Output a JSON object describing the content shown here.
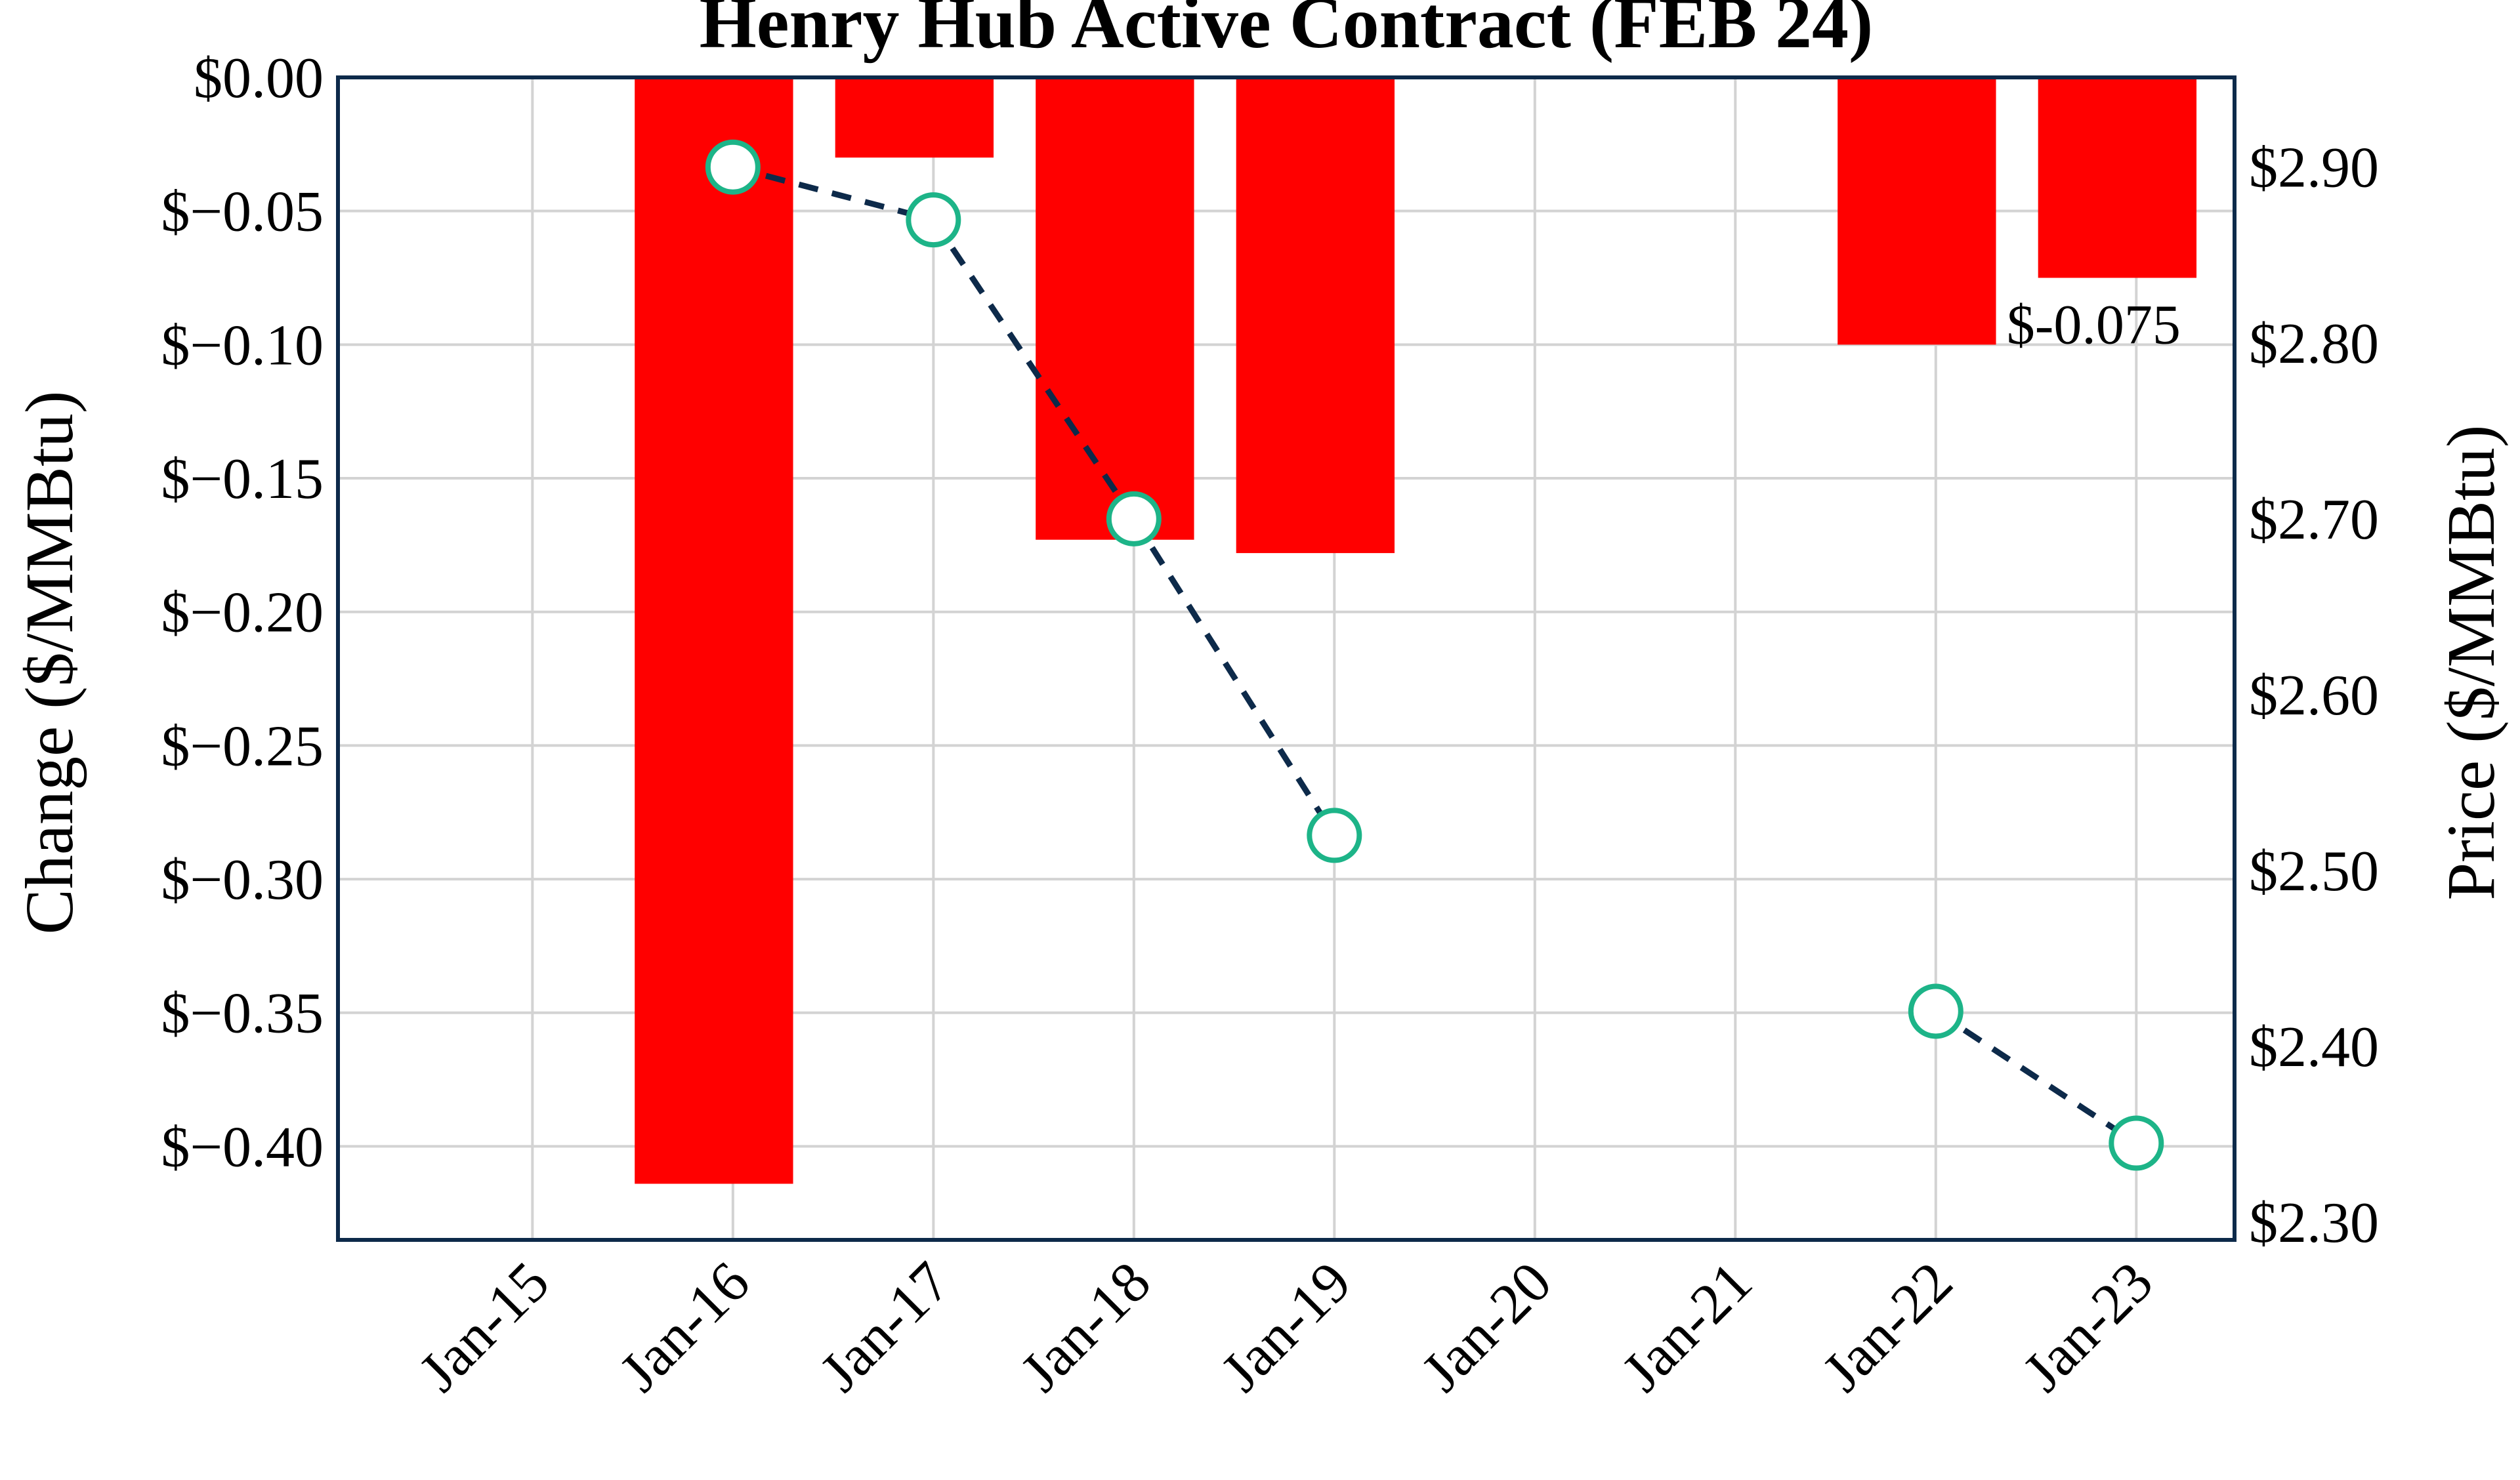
{
  "chart_data": {
    "type": "bar",
    "title": "Henry Hub Active Contract (FEB 24)",
    "xlabel": "",
    "ylabel": "Change ($/MMBtu)",
    "y2label": "Price ($/MMBtu)",
    "categories": [
      "Jan-15",
      "Jan-16",
      "Jan-17",
      "Jan-18",
      "Jan-19",
      "Jan-20",
      "Jan-21",
      "Jan-22",
      "Jan-23"
    ],
    "y_ticks": [
      "$0.00",
      "$−0.05",
      "$−0.10",
      "$−0.15",
      "$−0.20",
      "$−0.25",
      "$−0.30",
      "$−0.35",
      "$−0.40"
    ],
    "y2_ticks": [
      "$2.90",
      "$2.80",
      "$2.70",
      "$2.60",
      "$2.50",
      "$2.40",
      "$2.30"
    ],
    "ylim": [
      -0.435,
      0.0
    ],
    "y2lim": [
      2.29,
      2.951
    ],
    "series": [
      {
        "kind": "bar",
        "axis": "left",
        "color": "#ff0000",
        "values": [
          null,
          -0.414,
          -0.03,
          -0.173,
          -0.178,
          null,
          null,
          -0.1,
          -0.075
        ]
      },
      {
        "kind": "line",
        "axis": "right",
        "line_style": "dashed",
        "line_color": "#0d2a4a",
        "marker": "open-circle",
        "marker_color": "#1db488",
        "values": [
          null,
          2.9,
          2.87,
          2.7,
          2.52,
          null,
          null,
          2.42,
          2.345
        ]
      }
    ],
    "annotations": [
      {
        "category": "Jan-23",
        "text": "$-0.075"
      }
    ],
    "grid": true,
    "legend": "none"
  }
}
